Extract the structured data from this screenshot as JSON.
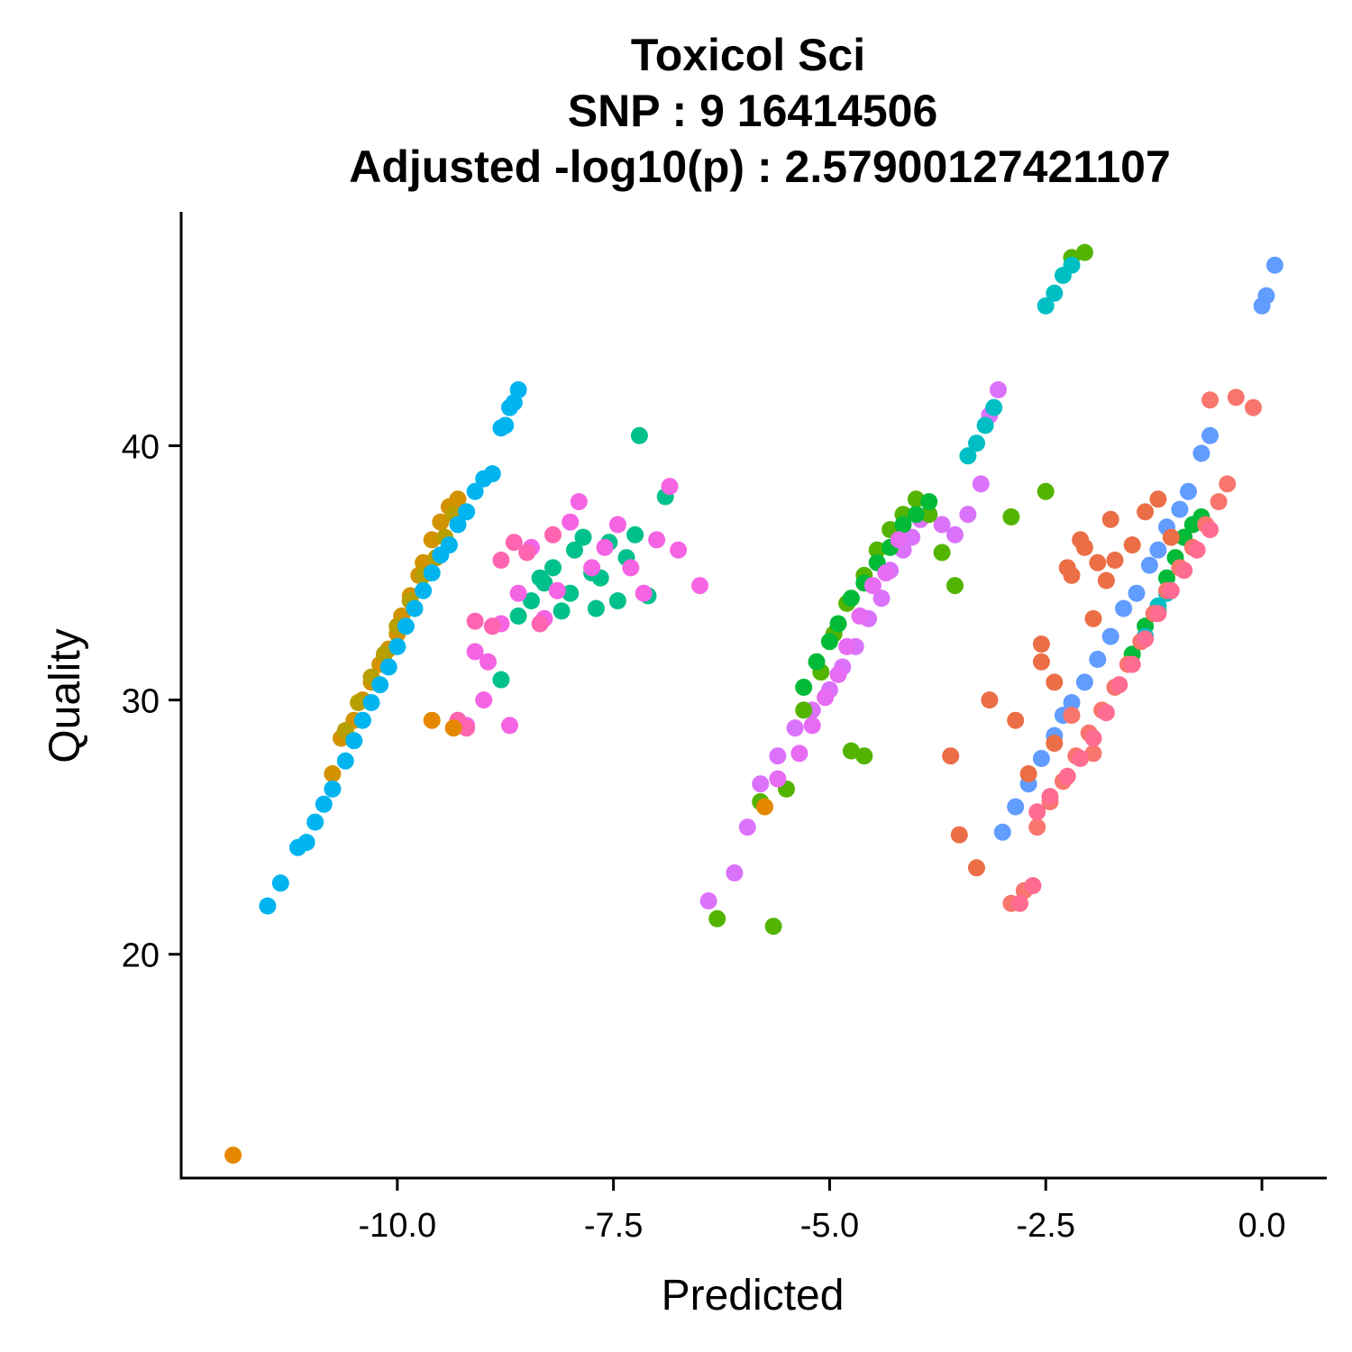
{
  "chart_data": {
    "type": "scatter",
    "title_lines": [
      "Toxicol Sci",
      "SNP :  9 16414506",
      "Adjusted -log10(p) :  2.57900127421107"
    ],
    "xlabel": "Predicted",
    "ylabel": "Quality",
    "xlim": [
      -12.5,
      0.75
    ],
    "ylim": [
      11.2,
      49.2
    ],
    "x_ticks": [
      -10.0,
      -7.5,
      -5.0,
      -2.5,
      0.0
    ],
    "x_tick_labels": [
      "-10.0",
      "-7.5",
      "-5.0",
      "-2.5",
      "0.0"
    ],
    "y_ticks": [
      20,
      30,
      40
    ],
    "y_tick_labels": [
      "20",
      "30",
      "40"
    ],
    "grid": false,
    "legend": "none",
    "series": [
      {
        "color": "#D39200",
        "x": [
          -10.75,
          -10.65,
          -10.5,
          -10.4,
          -10.3,
          -10.2,
          -10.1,
          -10.0,
          -9.95,
          -9.85,
          -9.75,
          -9.7,
          -9.6,
          -9.5,
          -9.4,
          -9.3
        ],
        "y": [
          27.1,
          28.5,
          29.2,
          30.0,
          30.7,
          31.4,
          32.0,
          32.6,
          33.3,
          34.1,
          34.9,
          35.4,
          36.3,
          37.0,
          37.6,
          37.9
        ]
      },
      {
        "color": "#B79F00",
        "x": [
          -10.6,
          -10.45,
          -10.3,
          -10.15,
          -10.0,
          -9.85,
          -9.7,
          -9.55,
          -9.45,
          -9.35
        ],
        "y": [
          28.8,
          29.9,
          30.9,
          31.8,
          32.9,
          33.9,
          34.9,
          35.6,
          36.4,
          37.3
        ]
      },
      {
        "color": "#00B4F0",
        "x": [
          -11.5,
          -11.35,
          -11.15,
          -11.05,
          -10.95,
          -10.85,
          -10.75,
          -10.6,
          -10.5,
          -10.4,
          -10.3,
          -10.2,
          -10.1,
          -10.0,
          -9.9,
          -9.8,
          -9.7,
          -9.6,
          -9.5,
          -9.4,
          -9.3,
          -9.2,
          -9.1,
          -9.0,
          -8.9,
          -8.8,
          -8.7,
          -8.6,
          -8.65,
          -8.75
        ],
        "y": [
          21.9,
          22.8,
          24.2,
          24.4,
          25.2,
          25.9,
          26.5,
          27.6,
          28.4,
          29.2,
          29.9,
          30.6,
          31.3,
          32.1,
          32.9,
          33.6,
          34.3,
          35.0,
          35.7,
          36.1,
          36.9,
          37.4,
          38.2,
          38.7,
          38.9,
          40.7,
          41.5,
          42.2,
          41.7,
          40.8
        ]
      },
      {
        "color": "#00C08B",
        "x": [
          -8.8,
          -8.6,
          -8.45,
          -8.3,
          -8.2,
          -8.1,
          -8.0,
          -7.95,
          -7.85,
          -7.75,
          -7.65,
          -7.55,
          -7.45,
          -7.35,
          -7.25,
          -7.1,
          -6.9,
          -7.2,
          -8.35,
          -7.7
        ],
        "y": [
          30.8,
          33.3,
          33.9,
          34.6,
          35.2,
          33.5,
          34.2,
          35.9,
          36.4,
          35.0,
          34.8,
          36.2,
          33.9,
          35.6,
          36.5,
          34.1,
          38.0,
          40.4,
          34.8,
          33.6
        ]
      },
      {
        "color": "#F564E3",
        "x": [
          -9.2,
          -9.0,
          -8.8,
          -8.6,
          -8.45,
          -8.3,
          -8.15,
          -8.0,
          -7.9,
          -7.75,
          -7.6,
          -7.45,
          -7.3,
          -7.15,
          -7.0,
          -6.85,
          -6.75,
          -6.5,
          -9.1,
          -8.95,
          -8.7
        ],
        "y": [
          29.0,
          30.0,
          33.0,
          34.2,
          36.0,
          33.2,
          34.3,
          37.0,
          37.8,
          35.2,
          36.0,
          36.9,
          35.2,
          34.2,
          36.3,
          38.4,
          35.9,
          34.5,
          31.9,
          31.5,
          29.0
        ]
      },
      {
        "color": "#FF64B0",
        "x": [
          -9.3,
          -9.2,
          -9.1,
          -8.9,
          -8.8,
          -8.65,
          -8.5,
          -8.35,
          -8.2
        ],
        "y": [
          29.2,
          28.9,
          33.1,
          32.9,
          35.5,
          36.2,
          35.8,
          33.0,
          36.5
        ]
      },
      {
        "color": "#DB72FB",
        "x": [
          -6.1,
          -5.95,
          -5.8,
          -5.6,
          -5.4,
          -5.2,
          -5.0,
          -4.85,
          -4.7,
          -4.55,
          -4.4,
          -4.3,
          -4.15,
          -4.05,
          -3.95,
          -3.85,
          -3.7,
          -3.55,
          -3.4,
          -3.25,
          -3.15,
          -3.05,
          -6.4
        ],
        "y": [
          23.2,
          25.0,
          26.7,
          27.8,
          28.9,
          29.6,
          30.4,
          31.3,
          32.1,
          33.2,
          34.0,
          35.1,
          35.9,
          36.4,
          37.1,
          37.3,
          36.9,
          36.5,
          37.3,
          38.5,
          41.2,
          42.2,
          22.1
        ]
      },
      {
        "color": "#53B400",
        "x": [
          -6.3,
          -5.8,
          -5.65,
          -5.5,
          -5.3,
          -5.1,
          -4.95,
          -4.8,
          -4.6,
          -4.45,
          -4.3,
          -4.15,
          -4.0,
          -3.85,
          -3.7,
          -3.55,
          -4.75,
          -4.6,
          -2.9,
          -2.5,
          -2.2,
          -2.05
        ],
        "y": [
          21.4,
          26.0,
          21.1,
          26.5,
          29.6,
          31.1,
          32.6,
          33.8,
          34.9,
          35.9,
          36.7,
          37.3,
          37.9,
          37.3,
          35.8,
          34.5,
          28.0,
          27.8,
          37.2,
          38.2,
          47.4,
          47.6
        ]
      },
      {
        "color": "#00BA38",
        "x": [
          -5.3,
          -5.15,
          -5.0,
          -4.9,
          -4.75,
          -4.6,
          -4.45,
          -4.3,
          -4.15,
          -4.0,
          -3.85,
          -1.5,
          -1.35,
          -1.2,
          -1.1,
          -1.0,
          -0.9,
          -0.8,
          -0.7
        ],
        "y": [
          30.5,
          31.5,
          32.3,
          33.0,
          34.0,
          34.6,
          35.4,
          36.0,
          36.9,
          37.3,
          37.8,
          31.8,
          32.9,
          33.5,
          34.8,
          35.6,
          36.4,
          36.9,
          37.2
        ]
      },
      {
        "color": "#00BFC4",
        "x": [
          -2.5,
          -2.4,
          -2.3,
          -2.2,
          -3.4,
          -3.3,
          -3.2,
          -3.1,
          -1.35,
          -1.2,
          -1.1
        ],
        "y": [
          45.5,
          46.0,
          46.7,
          47.1,
          39.6,
          40.1,
          40.8,
          41.5,
          32.5,
          33.7,
          34.2
        ]
      },
      {
        "color": "#619CFF",
        "x": [
          -3.0,
          -2.85,
          -2.7,
          -2.55,
          -2.4,
          -2.3,
          -2.2,
          -2.05,
          -1.9,
          -1.75,
          -1.6,
          -1.45,
          -1.3,
          -1.2,
          -1.1,
          -0.95,
          -0.85,
          -0.7,
          -0.6,
          0.0,
          0.05,
          0.15
        ],
        "y": [
          24.8,
          25.8,
          26.7,
          27.7,
          28.6,
          29.4,
          29.9,
          30.7,
          31.6,
          32.5,
          33.6,
          34.2,
          35.3,
          35.9,
          36.8,
          37.5,
          38.2,
          39.7,
          40.4,
          45.5,
          45.9,
          47.1
        ]
      },
      {
        "color": "#F8766D",
        "x": [
          -2.9,
          -2.75,
          -2.6,
          -2.45,
          -2.3,
          -2.15,
          -2.0,
          -1.85,
          -1.7,
          -1.55,
          -1.4,
          -1.25,
          -1.1,
          -0.95,
          -0.8,
          -0.65,
          -0.5,
          -0.4,
          -0.3,
          -0.6,
          -0.1,
          -2.2,
          -1.95
        ],
        "y": [
          22.0,
          22.5,
          25.0,
          26.0,
          26.8,
          27.8,
          28.7,
          29.6,
          30.5,
          31.4,
          32.3,
          33.4,
          34.3,
          35.2,
          36.0,
          36.9,
          37.8,
          38.5,
          41.9,
          41.8,
          41.5,
          29.4,
          27.9
        ]
      },
      {
        "color": "#E76BF3",
        "x": [
          -5.6,
          -5.35,
          -5.2,
          -5.05,
          -4.9,
          -4.8,
          -4.65,
          -4.5,
          -4.35,
          -4.2
        ],
        "y": [
          26.9,
          27.9,
          29.0,
          30.1,
          31.0,
          32.1,
          33.3,
          34.5,
          35.0,
          36.3
        ]
      },
      {
        "color": "#FF6C91",
        "x": [
          -2.6,
          -2.45,
          -2.25,
          -2.1,
          -1.95,
          -1.8,
          -1.65,
          -1.5,
          -1.35,
          -1.2,
          -1.05,
          -0.9,
          -0.75,
          -0.6,
          -2.8,
          -2.65
        ],
        "y": [
          25.6,
          26.2,
          27.0,
          27.7,
          28.5,
          29.5,
          30.6,
          31.4,
          32.4,
          33.4,
          34.3,
          35.1,
          35.9,
          36.7,
          22.0,
          22.7
        ]
      },
      {
        "color": "#E58700",
        "x": [
          -11.9,
          -9.6,
          -9.35,
          -5.75
        ],
        "y": [
          12.1,
          29.2,
          28.9,
          25.8
        ]
      },
      {
        "color": "#EB6E46",
        "x": [
          -3.6,
          -3.5,
          -3.15,
          -2.85,
          -2.7,
          -2.55,
          -2.4,
          -2.25,
          -2.1,
          -1.95,
          -1.8,
          -1.7,
          -1.5,
          -1.35,
          -1.2,
          -1.05,
          -3.3,
          -2.55,
          -2.4,
          -2.2,
          -2.05,
          -1.9,
          -1.75
        ],
        "y": [
          27.8,
          24.7,
          30.0,
          29.2,
          27.1,
          31.5,
          30.7,
          35.2,
          36.3,
          33.2,
          34.7,
          35.5,
          36.1,
          37.4,
          37.9,
          36.4,
          23.4,
          32.2,
          28.3,
          34.9,
          36.0,
          35.4,
          37.1
        ]
      }
    ]
  }
}
